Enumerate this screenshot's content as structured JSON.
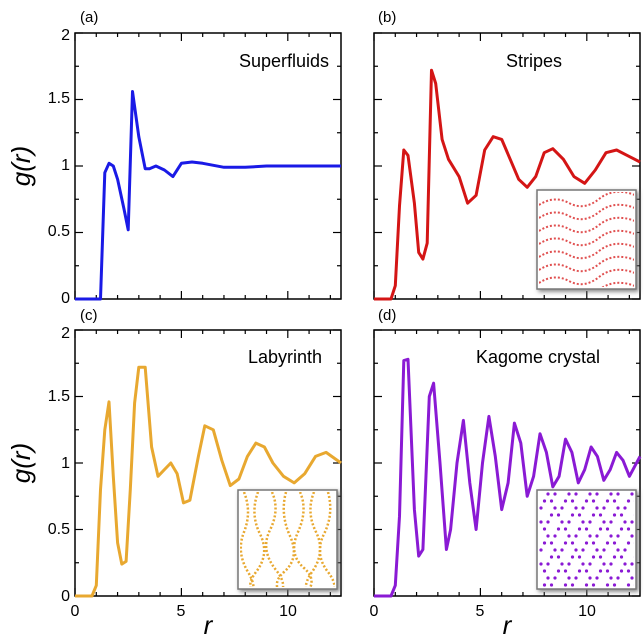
{
  "chart_data": [
    {
      "type": "line",
      "panel": "(a)",
      "title": "Superfluids",
      "color": "#1a1ae6",
      "xlabel": "r",
      "ylabel": "g(r)",
      "xlim": [
        0,
        12.5
      ],
      "ylim": [
        0,
        2
      ],
      "xticks": [
        "0",
        "5",
        "10"
      ],
      "yticks": [
        "0",
        "0.5",
        "1",
        "1.5",
        "2"
      ],
      "x": [
        0,
        0.5,
        0.8,
        1.2,
        1.4,
        1.6,
        1.8,
        2.0,
        2.3,
        2.5,
        2.7,
        3.0,
        3.3,
        3.5,
        3.8,
        4.2,
        4.6,
        5.0,
        5.5,
        6.0,
        7.0,
        8.0,
        9.0,
        10.0,
        11.0,
        12.5
      ],
      "y": [
        0,
        0,
        0,
        0,
        0.95,
        1.02,
        1.0,
        0.9,
        0.68,
        0.52,
        1.56,
        1.22,
        0.98,
        0.98,
        1.0,
        0.97,
        0.92,
        1.02,
        1.03,
        1.02,
        0.99,
        0.99,
        1.0,
        1.0,
        1.0,
        1.0
      ],
      "inset": false
    },
    {
      "type": "line",
      "panel": "(b)",
      "title": "Stripes",
      "color": "#d41515",
      "xlabel": "r",
      "ylabel": "g(r)",
      "xlim": [
        0,
        12.5
      ],
      "ylim": [
        0,
        2
      ],
      "xticks": [
        "0",
        "5",
        "10"
      ],
      "yticks": [
        "0",
        "0.5",
        "1",
        "1.5",
        "2"
      ],
      "x": [
        0,
        0.8,
        1.0,
        1.2,
        1.4,
        1.6,
        1.9,
        2.1,
        2.3,
        2.5,
        2.7,
        2.9,
        3.2,
        3.5,
        4.0,
        4.4,
        4.8,
        5.2,
        5.6,
        6.0,
        6.4,
        6.8,
        7.2,
        7.6,
        8.0,
        8.4,
        8.9,
        9.4,
        9.9,
        10.4,
        10.9,
        11.4,
        11.9,
        12.5
      ],
      "y": [
        0,
        0,
        0.1,
        0.7,
        1.12,
        1.08,
        0.72,
        0.35,
        0.3,
        0.42,
        1.72,
        1.62,
        1.2,
        1.05,
        0.92,
        0.72,
        0.78,
        1.12,
        1.22,
        1.2,
        1.05,
        0.9,
        0.84,
        0.92,
        1.1,
        1.13,
        1.05,
        0.92,
        0.87,
        0.97,
        1.1,
        1.12,
        1.08,
        1.03
      ],
      "inset": true
    },
    {
      "type": "line",
      "panel": "(c)",
      "title": "Labyrinth",
      "color": "#e8a830",
      "xlabel": "r",
      "ylabel": "g(r)",
      "xlim": [
        0,
        12.5
      ],
      "ylim": [
        0,
        2
      ],
      "xticks": [
        "0",
        "5",
        "10"
      ],
      "yticks": [
        "0",
        "0.5",
        "1",
        "1.5",
        "2"
      ],
      "x": [
        0,
        0.8,
        1.0,
        1.2,
        1.4,
        1.6,
        1.8,
        2.0,
        2.2,
        2.4,
        2.6,
        2.8,
        3.0,
        3.3,
        3.6,
        3.9,
        4.2,
        4.5,
        4.8,
        5.1,
        5.4,
        5.8,
        6.1,
        6.5,
        6.9,
        7.3,
        7.7,
        8.1,
        8.5,
        8.9,
        9.3,
        9.8,
        10.3,
        10.8,
        11.3,
        11.8,
        12.5
      ],
      "y": [
        0,
        0,
        0.08,
        0.8,
        1.25,
        1.46,
        0.9,
        0.4,
        0.24,
        0.26,
        0.8,
        1.45,
        1.72,
        1.72,
        1.12,
        0.9,
        0.95,
        1.0,
        0.92,
        0.7,
        0.72,
        1.05,
        1.28,
        1.25,
        1.02,
        0.83,
        0.88,
        1.05,
        1.15,
        1.12,
        1.0,
        0.9,
        0.85,
        0.92,
        1.05,
        1.08,
        1.0
      ],
      "inset": true
    },
    {
      "type": "line",
      "panel": "(d)",
      "title": "Kagome crystal",
      "color": "#8a1ad4",
      "xlabel": "r",
      "ylabel": "g(r)",
      "xlim": [
        0,
        12.5
      ],
      "ylim": [
        0,
        2
      ],
      "xticks": [
        "0",
        "5",
        "10"
      ],
      "yticks": [
        "0",
        "0.5",
        "1",
        "1.5",
        "2"
      ],
      "x": [
        0,
        0.8,
        1.0,
        1.2,
        1.4,
        1.6,
        1.9,
        2.1,
        2.3,
        2.6,
        2.8,
        3.1,
        3.4,
        3.6,
        3.9,
        4.2,
        4.5,
        4.8,
        5.1,
        5.4,
        5.7,
        6.0,
        6.3,
        6.6,
        6.9,
        7.2,
        7.5,
        7.8,
        8.1,
        8.4,
        8.7,
        9.0,
        9.3,
        9.6,
        9.9,
        10.2,
        10.5,
        10.8,
        11.1,
        11.4,
        11.7,
        12.0,
        12.5
      ],
      "y": [
        0,
        0,
        0.08,
        0.6,
        1.77,
        1.78,
        0.65,
        0.3,
        0.35,
        1.5,
        1.6,
        1.0,
        0.35,
        0.5,
        1.0,
        1.32,
        0.85,
        0.5,
        1.0,
        1.35,
        1.05,
        0.65,
        0.85,
        1.3,
        1.15,
        0.75,
        0.9,
        1.22,
        1.08,
        0.82,
        0.9,
        1.18,
        1.08,
        0.85,
        0.95,
        1.12,
        1.05,
        0.87,
        0.95,
        1.08,
        1.02,
        0.9,
        1.05
      ],
      "inset": true
    }
  ]
}
